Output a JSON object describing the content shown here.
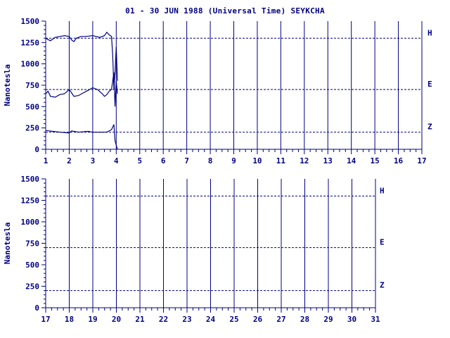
{
  "title": "01 - 30 JUN 1988 (Universal Time) SEYKCHA",
  "colors": {
    "axis": "#000080",
    "trace": "#000080",
    "background": "#ffffff"
  },
  "chart_data": [
    {
      "type": "line",
      "panel": "top",
      "ylabel": "Nanotesla",
      "ylim": [
        0,
        1500
      ],
      "yticks": [
        0,
        250,
        500,
        750,
        1000,
        1250,
        1500
      ],
      "xlim": [
        1,
        17
      ],
      "xticks": [
        1,
        2,
        3,
        4,
        5,
        6,
        7,
        8,
        9,
        10,
        11,
        12,
        13,
        14,
        15,
        16,
        17
      ],
      "grid": "vertical lines at each day",
      "baselines": [
        {
          "name": "H",
          "value": 1300
        },
        {
          "name": "E",
          "value": 700
        },
        {
          "name": "Z",
          "value": 200
        }
      ],
      "series": [
        {
          "name": "H",
          "x": [
            1.0,
            1.2,
            1.4,
            1.6,
            1.8,
            2.0,
            2.1,
            2.2,
            2.3,
            2.5,
            2.7,
            3.0,
            3.3,
            3.5,
            3.6,
            3.7,
            3.8,
            3.85,
            3.9,
            3.95,
            4.0,
            4.05
          ],
          "y": [
            1300,
            1270,
            1310,
            1320,
            1330,
            1320,
            1280,
            1260,
            1300,
            1320,
            1320,
            1330,
            1310,
            1330,
            1370,
            1340,
            1320,
            1100,
            700,
            900,
            1200,
            800
          ]
        },
        {
          "name": "E",
          "x": [
            1.0,
            1.1,
            1.2,
            1.4,
            1.6,
            1.8,
            2.0,
            2.1,
            2.2,
            2.4,
            2.6,
            2.8,
            3.0,
            3.2,
            3.4,
            3.5,
            3.6,
            3.7,
            3.8,
            3.9,
            3.95,
            4.0,
            4.05
          ],
          "y": [
            650,
            680,
            620,
            610,
            640,
            650,
            700,
            660,
            620,
            630,
            660,
            690,
            720,
            700,
            650,
            620,
            640,
            680,
            700,
            900,
            500,
            800,
            650
          ]
        },
        {
          "name": "Z",
          "x": [
            1.0,
            1.3,
            1.6,
            2.0,
            2.1,
            2.4,
            2.8,
            3.0,
            3.3,
            3.6,
            3.8,
            3.9,
            3.95,
            4.0,
            4.05
          ],
          "y": [
            220,
            210,
            200,
            190,
            215,
            200,
            210,
            200,
            200,
            200,
            230,
            290,
            100,
            50,
            0
          ]
        }
      ]
    },
    {
      "type": "line",
      "panel": "bottom",
      "ylabel": "Nanotesla",
      "ylim": [
        0,
        1500
      ],
      "yticks": [
        0,
        250,
        500,
        750,
        1000,
        1250,
        1500
      ],
      "xlim": [
        17,
        31
      ],
      "xticks": [
        17,
        18,
        19,
        20,
        21,
        22,
        23,
        24,
        25,
        26,
        27,
        28,
        29,
        30,
        31
      ],
      "grid": "vertical lines at each day",
      "baselines": [
        {
          "name": "H",
          "value": 1300
        },
        {
          "name": "E",
          "value": 700
        },
        {
          "name": "Z",
          "value": 200
        }
      ],
      "series": []
    }
  ]
}
